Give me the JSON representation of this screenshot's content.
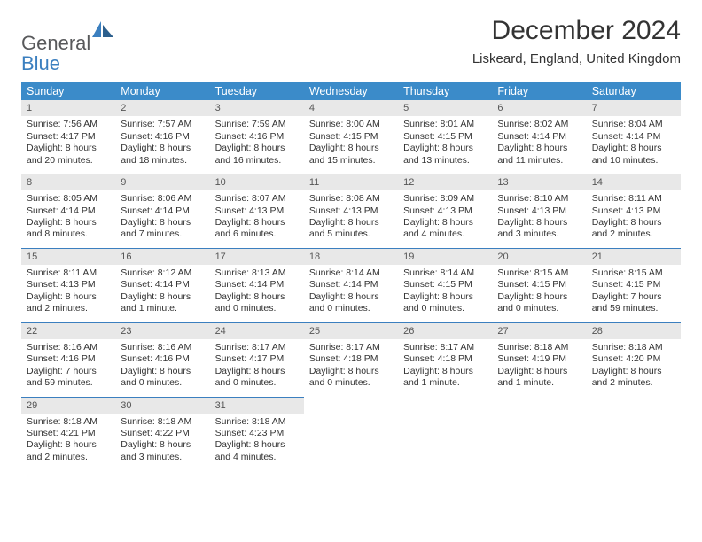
{
  "logo": {
    "word1": "General",
    "word2": "Blue"
  },
  "title": "December 2024",
  "location": "Liskeard, England, United Kingdom",
  "colors": {
    "header_bg": "#3b8bc9",
    "header_text": "#ffffff",
    "daynum_bg": "#e8e8e8",
    "row_border": "#3b7fbf",
    "text": "#333333",
    "logo_gray": "#58595b",
    "logo_blue": "#3b7fbf"
  },
  "typography": {
    "title_fontsize": 30,
    "location_fontsize": 15,
    "header_fontsize": 12.5,
    "cell_fontsize": 10.5,
    "daynum_fontsize": 11
  },
  "weekdays": [
    "Sunday",
    "Monday",
    "Tuesday",
    "Wednesday",
    "Thursday",
    "Friday",
    "Saturday"
  ],
  "days": [
    {
      "n": "1",
      "sunrise": "Sunrise: 7:56 AM",
      "sunset": "Sunset: 4:17 PM",
      "daylight": "Daylight: 8 hours and 20 minutes."
    },
    {
      "n": "2",
      "sunrise": "Sunrise: 7:57 AM",
      "sunset": "Sunset: 4:16 PM",
      "daylight": "Daylight: 8 hours and 18 minutes."
    },
    {
      "n": "3",
      "sunrise": "Sunrise: 7:59 AM",
      "sunset": "Sunset: 4:16 PM",
      "daylight": "Daylight: 8 hours and 16 minutes."
    },
    {
      "n": "4",
      "sunrise": "Sunrise: 8:00 AM",
      "sunset": "Sunset: 4:15 PM",
      "daylight": "Daylight: 8 hours and 15 minutes."
    },
    {
      "n": "5",
      "sunrise": "Sunrise: 8:01 AM",
      "sunset": "Sunset: 4:15 PM",
      "daylight": "Daylight: 8 hours and 13 minutes."
    },
    {
      "n": "6",
      "sunrise": "Sunrise: 8:02 AM",
      "sunset": "Sunset: 4:14 PM",
      "daylight": "Daylight: 8 hours and 11 minutes."
    },
    {
      "n": "7",
      "sunrise": "Sunrise: 8:04 AM",
      "sunset": "Sunset: 4:14 PM",
      "daylight": "Daylight: 8 hours and 10 minutes."
    },
    {
      "n": "8",
      "sunrise": "Sunrise: 8:05 AM",
      "sunset": "Sunset: 4:14 PM",
      "daylight": "Daylight: 8 hours and 8 minutes."
    },
    {
      "n": "9",
      "sunrise": "Sunrise: 8:06 AM",
      "sunset": "Sunset: 4:14 PM",
      "daylight": "Daylight: 8 hours and 7 minutes."
    },
    {
      "n": "10",
      "sunrise": "Sunrise: 8:07 AM",
      "sunset": "Sunset: 4:13 PM",
      "daylight": "Daylight: 8 hours and 6 minutes."
    },
    {
      "n": "11",
      "sunrise": "Sunrise: 8:08 AM",
      "sunset": "Sunset: 4:13 PM",
      "daylight": "Daylight: 8 hours and 5 minutes."
    },
    {
      "n": "12",
      "sunrise": "Sunrise: 8:09 AM",
      "sunset": "Sunset: 4:13 PM",
      "daylight": "Daylight: 8 hours and 4 minutes."
    },
    {
      "n": "13",
      "sunrise": "Sunrise: 8:10 AM",
      "sunset": "Sunset: 4:13 PM",
      "daylight": "Daylight: 8 hours and 3 minutes."
    },
    {
      "n": "14",
      "sunrise": "Sunrise: 8:11 AM",
      "sunset": "Sunset: 4:13 PM",
      "daylight": "Daylight: 8 hours and 2 minutes."
    },
    {
      "n": "15",
      "sunrise": "Sunrise: 8:11 AM",
      "sunset": "Sunset: 4:13 PM",
      "daylight": "Daylight: 8 hours and 2 minutes."
    },
    {
      "n": "16",
      "sunrise": "Sunrise: 8:12 AM",
      "sunset": "Sunset: 4:14 PM",
      "daylight": "Daylight: 8 hours and 1 minute."
    },
    {
      "n": "17",
      "sunrise": "Sunrise: 8:13 AM",
      "sunset": "Sunset: 4:14 PM",
      "daylight": "Daylight: 8 hours and 0 minutes."
    },
    {
      "n": "18",
      "sunrise": "Sunrise: 8:14 AM",
      "sunset": "Sunset: 4:14 PM",
      "daylight": "Daylight: 8 hours and 0 minutes."
    },
    {
      "n": "19",
      "sunrise": "Sunrise: 8:14 AM",
      "sunset": "Sunset: 4:15 PM",
      "daylight": "Daylight: 8 hours and 0 minutes."
    },
    {
      "n": "20",
      "sunrise": "Sunrise: 8:15 AM",
      "sunset": "Sunset: 4:15 PM",
      "daylight": "Daylight: 8 hours and 0 minutes."
    },
    {
      "n": "21",
      "sunrise": "Sunrise: 8:15 AM",
      "sunset": "Sunset: 4:15 PM",
      "daylight": "Daylight: 7 hours and 59 minutes."
    },
    {
      "n": "22",
      "sunrise": "Sunrise: 8:16 AM",
      "sunset": "Sunset: 4:16 PM",
      "daylight": "Daylight: 7 hours and 59 minutes."
    },
    {
      "n": "23",
      "sunrise": "Sunrise: 8:16 AM",
      "sunset": "Sunset: 4:16 PM",
      "daylight": "Daylight: 8 hours and 0 minutes."
    },
    {
      "n": "24",
      "sunrise": "Sunrise: 8:17 AM",
      "sunset": "Sunset: 4:17 PM",
      "daylight": "Daylight: 8 hours and 0 minutes."
    },
    {
      "n": "25",
      "sunrise": "Sunrise: 8:17 AM",
      "sunset": "Sunset: 4:18 PM",
      "daylight": "Daylight: 8 hours and 0 minutes."
    },
    {
      "n": "26",
      "sunrise": "Sunrise: 8:17 AM",
      "sunset": "Sunset: 4:18 PM",
      "daylight": "Daylight: 8 hours and 1 minute."
    },
    {
      "n": "27",
      "sunrise": "Sunrise: 8:18 AM",
      "sunset": "Sunset: 4:19 PM",
      "daylight": "Daylight: 8 hours and 1 minute."
    },
    {
      "n": "28",
      "sunrise": "Sunrise: 8:18 AM",
      "sunset": "Sunset: 4:20 PM",
      "daylight": "Daylight: 8 hours and 2 minutes."
    },
    {
      "n": "29",
      "sunrise": "Sunrise: 8:18 AM",
      "sunset": "Sunset: 4:21 PM",
      "daylight": "Daylight: 8 hours and 2 minutes."
    },
    {
      "n": "30",
      "sunrise": "Sunrise: 8:18 AM",
      "sunset": "Sunset: 4:22 PM",
      "daylight": "Daylight: 8 hours and 3 minutes."
    },
    {
      "n": "31",
      "sunrise": "Sunrise: 8:18 AM",
      "sunset": "Sunset: 4:23 PM",
      "daylight": "Daylight: 8 hours and 4 minutes."
    }
  ]
}
